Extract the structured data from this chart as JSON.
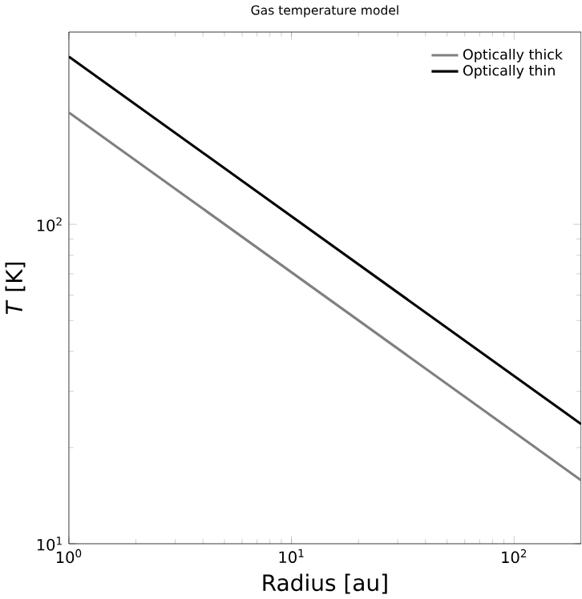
{
  "chart_data": {
    "type": "line",
    "title": "Gas temperature model",
    "xlabel": "Radius [au]",
    "ylabel": "*T* [K]",
    "log": "xy",
    "x": [
      1,
      200
    ],
    "series": [
      {
        "name": "Optically thick",
        "color": "#808080",
        "values": [
          224,
          15.8
        ]
      },
      {
        "name": "Optically thin",
        "color": "#000000",
        "values": [
          335,
          23.7
        ]
      }
    ],
    "xlim": [
      1,
      200
    ],
    "ylim": [
      10,
      400
    ],
    "xticks": [
      {
        "value": 1,
        "label": "10$^{0}$"
      },
      {
        "value": 10,
        "label": "10$^{1}$"
      },
      {
        "value": 100,
        "label": "10$^{2}$"
      }
    ],
    "yticks": [
      {
        "value": 10,
        "label": "10$^{1}$"
      },
      {
        "value": 100,
        "label": "10$^{2}$"
      }
    ],
    "legend": "top right",
    "grid": false,
    "marker": "none",
    "line_style": "solid"
  }
}
